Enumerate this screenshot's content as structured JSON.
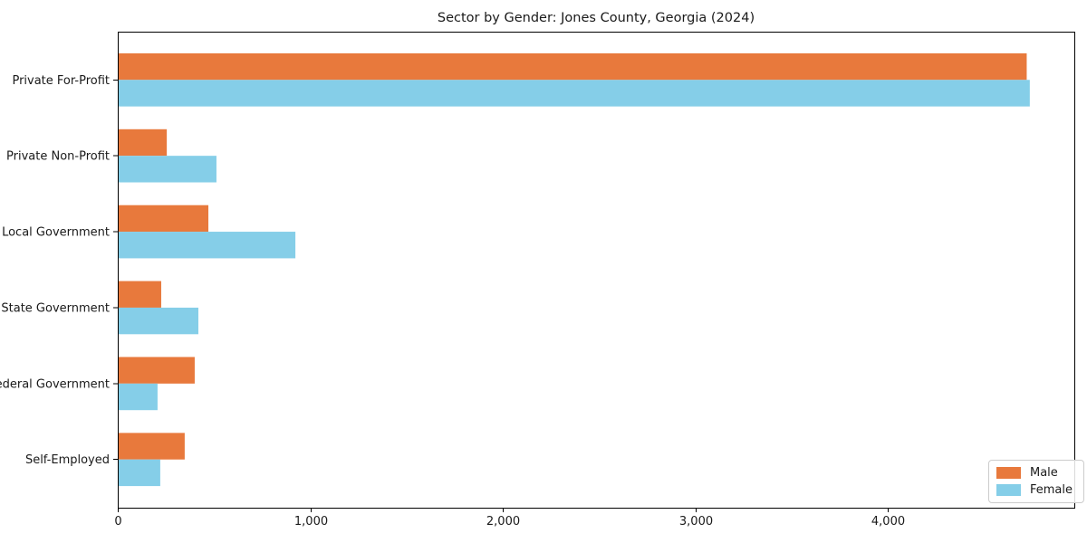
{
  "figure": {
    "background": "#ffffff"
  },
  "chart_data": {
    "type": "bar",
    "orientation": "horizontal",
    "title": "Sector by Gender: Jones County, Georgia (2024)",
    "categories": [
      "Private For-Profit",
      "Private Non-Profit",
      "Local Government",
      "State Government",
      "Federal Government",
      "Self-Employed"
    ],
    "series": [
      {
        "name": "Male",
        "color": "#E8793C",
        "values": [
          4717,
          250,
          466,
          221,
          395,
          343
        ]
      },
      {
        "name": "Female",
        "color": "#85CEE8",
        "values": [
          4733,
          508,
          918,
          414,
          202,
          216
        ]
      }
    ],
    "xlim": [
      0,
      4969
    ],
    "x_ticks": [
      0,
      1000,
      2000,
      3000,
      4000
    ],
    "x_tick_labels": [
      "0",
      "1,000",
      "2,000",
      "3,000",
      "4,000"
    ],
    "grid": false,
    "legend": {
      "position": "lower right",
      "entries": [
        "Male",
        "Female"
      ]
    },
    "axis_color": "#000000",
    "text_color": "#1a1a1a"
  }
}
